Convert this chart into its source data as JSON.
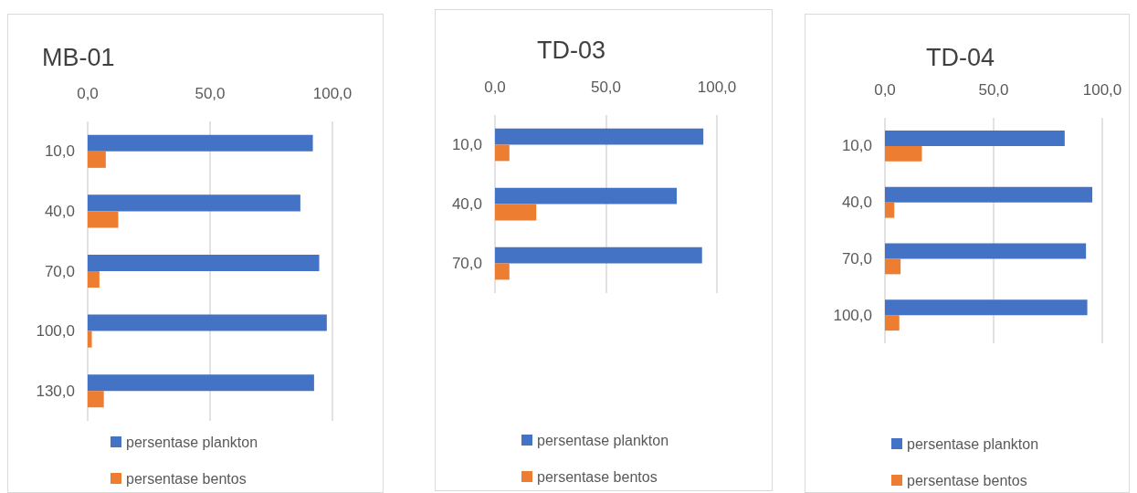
{
  "chart_data": [
    {
      "type": "bar",
      "orientation": "horizontal",
      "title": "MB-01",
      "categories": [
        "10,0",
        "40,0",
        "70,0",
        "100,0",
        "130,0"
      ],
      "series": [
        {
          "name": "persentase plankton",
          "color": "#4472c4",
          "values": [
            92.0,
            86.9,
            94.6,
            97.7,
            92.5
          ]
        },
        {
          "name": "persentase bentos",
          "color": "#ed7d31",
          "values": [
            7.4,
            12.5,
            4.8,
            1.7,
            6.6
          ]
        }
      ],
      "xlim": [
        0,
        100
      ],
      "xticks": [
        {
          "value": 0,
          "label": "0,0"
        },
        {
          "value": 50,
          "label": "50,0"
        },
        {
          "value": 100,
          "label": "100,0"
        }
      ],
      "grid": "x",
      "legend": "bottom"
    },
    {
      "type": "bar",
      "orientation": "horizontal",
      "title": "TD-03",
      "categories": [
        "10,0",
        "40,0",
        "70,0"
      ],
      "series": [
        {
          "name": "persentase plankton",
          "color": "#4472c4",
          "values": [
            93.9,
            81.9,
            93.3
          ]
        },
        {
          "name": "persentase bentos",
          "color": "#ed7d31",
          "values": [
            6.5,
            18.6,
            6.5
          ]
        }
      ],
      "xlim": [
        0,
        100
      ],
      "xticks": [
        {
          "value": 0,
          "label": "0,0"
        },
        {
          "value": 50,
          "label": "50,0"
        },
        {
          "value": 100,
          "label": "100,0"
        }
      ],
      "grid": "x",
      "legend": "bottom"
    },
    {
      "type": "bar",
      "orientation": "horizontal",
      "title": "TD-04",
      "categories": [
        "10,0",
        "40,0",
        "70,0",
        "100,0"
      ],
      "series": [
        {
          "name": "persentase plankton",
          "color": "#4472c4",
          "values": [
            82.7,
            95.4,
            92.5,
            93.1
          ]
        },
        {
          "name": "persentase bentos",
          "color": "#ed7d31",
          "values": [
            17.0,
            4.3,
            7.2,
            6.6
          ]
        }
      ],
      "xlim": [
        0,
        100
      ],
      "xticks": [
        {
          "value": 0,
          "label": "0,0"
        },
        {
          "value": 50,
          "label": "50,0"
        },
        {
          "value": 100,
          "label": "100,0"
        }
      ],
      "grid": "x",
      "legend": "bottom"
    }
  ]
}
